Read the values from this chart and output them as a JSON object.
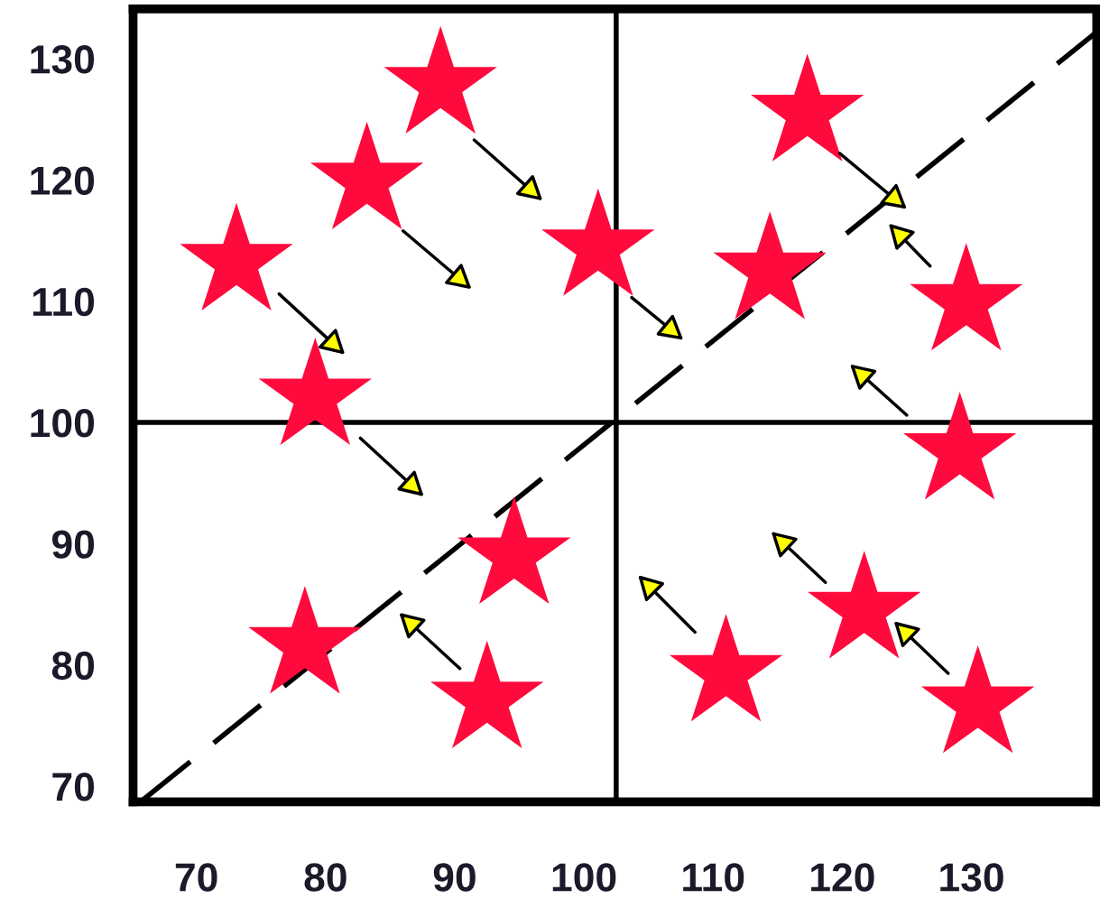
{
  "chart_data": {
    "type": "scatter",
    "xlim": [
      65.1,
      139.7
    ],
    "ylim": [
      68.7,
      134.1
    ],
    "xticks": [
      70,
      80,
      90,
      100,
      110,
      120,
      130
    ],
    "yticks": [
      70,
      80,
      90,
      100,
      110,
      120,
      130
    ],
    "grid": false,
    "series": [
      {
        "marker": "star",
        "color": "#ff0a3c",
        "x": [
          88.9,
          83.2,
          73.1,
          79.2,
          94.6,
          78.4,
          92.5,
          101.1,
          114.4,
          117.3,
          129.6,
          129.1,
          121.7,
          111.0,
          130.5
        ],
        "values": [
          127.8,
          119.9,
          113.2,
          102.1,
          89.0,
          81.6,
          77.1,
          114.4,
          112.5,
          125.5,
          109.9,
          97.6,
          84.5,
          79.3,
          76.7
        ]
      },
      {
        "type": "line",
        "line_style": "dashed",
        "color": "#000000",
        "x": [
          65.9,
          139.7
        ],
        "values": [
          68.9,
          132.2
        ]
      }
    ],
    "ref_lines": [
      {
        "axis": "x",
        "value": 102.5,
        "color": "#000000"
      },
      {
        "axis": "y",
        "value": 100,
        "color": "#000000"
      }
    ]
  }
}
